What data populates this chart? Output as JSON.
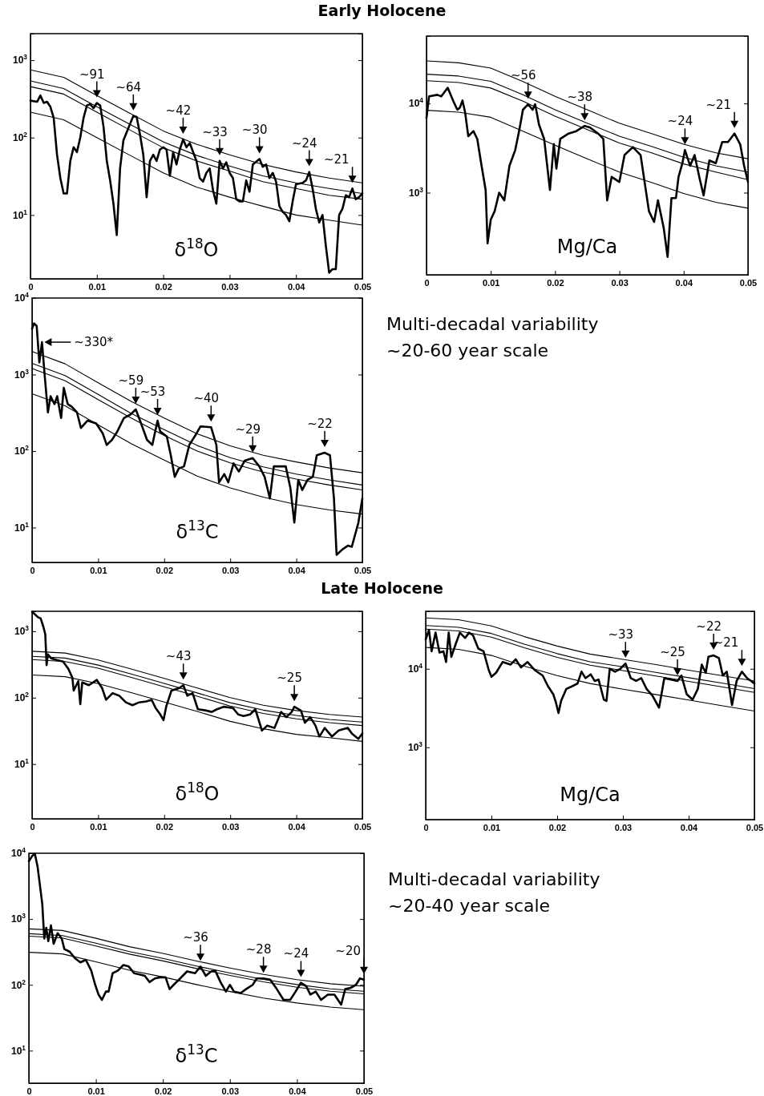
{
  "chart_data": [
    {
      "type": "line",
      "title": "Early Holocene",
      "log": true,
      "xlim": [
        0,
        0.05
      ],
      "ylim": [
        1.5,
        2200
      ],
      "xticks": [
        0,
        0.01,
        0.02,
        0.03,
        0.04,
        0.05
      ],
      "yticks": [
        {
          "value": 10,
          "label": "10$^{1}$"
        },
        {
          "value": 100,
          "label": "10$^{2}$"
        },
        {
          "value": 1000,
          "label": "10$^{3}$"
        }
      ],
      "x": [
        0,
        0.005,
        0.01,
        0.015,
        0.02,
        0.025,
        0.03,
        0.035,
        0.04,
        0.045,
        0.05
      ],
      "series": [
        {
          "color": "#000000",
          "x": [
            0,
            0.001,
            0.0015,
            0.002,
            0.0025,
            0.003,
            0.0035,
            0.004,
            0.0045,
            0.005,
            0.0055,
            0.006,
            0.0065,
            0.007,
            0.0075,
            0.008,
            0.0085,
            0.009,
            0.0095,
            0.01,
            0.0105,
            0.011,
            0.0115,
            0.012,
            0.0125,
            0.013,
            0.0135,
            0.014,
            0.015,
            0.0155,
            0.016,
            0.0165,
            0.017,
            0.0175,
            0.018,
            0.0185,
            0.019,
            0.0195,
            0.02,
            0.0205,
            0.021,
            0.0215,
            0.022,
            0.0225,
            0.023,
            0.0235,
            0.024,
            0.0245,
            0.025,
            0.0255,
            0.026,
            0.0265,
            0.027,
            0.0275,
            0.028,
            0.0285,
            0.029,
            0.0295,
            0.03,
            0.0305,
            0.031,
            0.0315,
            0.032,
            0.0325,
            0.033,
            0.0335,
            0.0345,
            0.035,
            0.0355,
            0.036,
            0.0365,
            0.037,
            0.0375,
            0.038,
            0.0385,
            0.039,
            0.0395,
            0.04,
            0.041,
            0.0415,
            0.042,
            0.0425,
            0.043,
            0.0435,
            0.044,
            0.0445,
            0.045,
            0.0455,
            0.046,
            0.0465,
            0.047,
            0.0475,
            0.048,
            0.0485,
            0.049,
            0.0495,
            0.05
          ],
          "values": [
            300,
            290,
            350,
            280,
            290,
            250,
            180,
            60,
            30,
            19,
            19,
            50,
            75,
            65,
            100,
            180,
            260,
            270,
            240,
            280,
            260,
            140,
            50,
            28,
            14,
            5.5,
            40,
            92,
            150,
            190,
            185,
            110,
            60,
            17,
            50,
            60,
            50,
            70,
            75,
            70,
            32,
            65,
            45,
            70,
            95,
            75,
            85,
            65,
            50,
            30,
            27,
            35,
            40,
            21,
            14,
            50,
            40,
            48,
            35,
            30,
            16,
            15,
            15,
            28,
            20,
            45,
            53,
            42,
            45,
            30,
            35,
            27,
            13,
            11,
            10,
            8.3,
            15,
            25,
            26,
            28,
            36,
            22,
            12,
            8,
            10,
            4,
            1.8,
            2,
            2,
            10,
            12,
            18,
            17,
            22,
            16,
            17,
            19
          ]
        },
        {
          "color": "#000000",
          "values": [
            750,
            600,
            350,
            205,
            122,
            82,
            60,
            45,
            36,
            30,
            26
          ]
        },
        {
          "color": "#000000",
          "values": [
            540,
            430,
            250,
            148,
            88,
            59,
            43,
            32,
            26,
            22,
            19
          ]
        },
        {
          "color": "#000000",
          "values": [
            455,
            365,
            213,
            125,
            74,
            50,
            37,
            27,
            22,
            18,
            16
          ]
        },
        {
          "color": "#000000",
          "values": [
            213,
            170,
            100,
            59,
            35,
            23,
            17,
            13,
            10,
            8.6,
            7.4
          ]
        }
      ],
      "annotations": [
        "δ$^{18}$O",
        {
          "text": "~91",
          "x": 0.01,
          "y": 280
        },
        {
          "text": "~64",
          "x": 0.0155,
          "y": 190
        },
        {
          "text": "~42",
          "x": 0.023,
          "y": 95
        },
        {
          "text": "~33",
          "x": 0.0285,
          "y": 50
        },
        {
          "text": "~30",
          "x": 0.0345,
          "y": 53
        },
        {
          "text": "~24",
          "x": 0.042,
          "y": 36
        },
        {
          "text": "~21",
          "x": 0.0485,
          "y": 22
        }
      ]
    },
    {
      "type": "line",
      "log": true,
      "xlim": [
        0,
        0.05
      ],
      "ylim": [
        120,
        57000
      ],
      "xticks": [
        0,
        0.01,
        0.02,
        0.03,
        0.04,
        0.05
      ],
      "yticks": [
        {
          "value": 1000,
          "label": "10$^{3}$"
        },
        {
          "value": 10000,
          "label": "10$^{4}$"
        }
      ],
      "x": [
        0,
        0.005,
        0.01,
        0.015,
        0.02,
        0.025,
        0.03,
        0.035,
        0.04,
        0.045,
        0.05
      ],
      "series": [
        {
          "color": "#000000",
          "x": [
            0,
            0.0004,
            0.0017,
            0.0023,
            0.0033,
            0.0042,
            0.0048,
            0.0052,
            0.0056,
            0.006,
            0.0065,
            0.0073,
            0.0079,
            0.0085,
            0.0092,
            0.0095,
            0.01,
            0.0106,
            0.0113,
            0.0121,
            0.0129,
            0.0138,
            0.0144,
            0.015,
            0.0158,
            0.0165,
            0.0169,
            0.0175,
            0.0183,
            0.0192,
            0.0198,
            0.0202,
            0.0208,
            0.0221,
            0.0233,
            0.0246,
            0.0254,
            0.0267,
            0.0275,
            0.0281,
            0.0288,
            0.03,
            0.0308,
            0.0321,
            0.0333,
            0.0346,
            0.0354,
            0.036,
            0.0369,
            0.0375,
            0.0381,
            0.0388,
            0.0392,
            0.0398,
            0.0402,
            0.041,
            0.0417,
            0.0425,
            0.0431,
            0.044,
            0.045,
            0.046,
            0.0469,
            0.0479,
            0.0488,
            0.0494,
            0.05
          ],
          "values": [
            6900,
            12000,
            12500,
            12000,
            15000,
            10500,
            8500,
            9000,
            10800,
            8000,
            4300,
            4900,
            4000,
            2140,
            1070,
            270,
            500,
            620,
            1000,
            820,
            2000,
            3000,
            4900,
            8500,
            9800,
            8500,
            9800,
            5800,
            4000,
            1070,
            3500,
            1860,
            4000,
            4600,
            4900,
            5600,
            5400,
            4600,
            4000,
            820,
            1500,
            1320,
            2640,
            3240,
            2640,
            620,
            470,
            820,
            400,
            190,
            870,
            870,
            1500,
            2140,
            3000,
            2000,
            2640,
            1420,
            930,
            2300,
            2140,
            3700,
            3700,
            4600,
            3470,
            2000,
            1320
          ]
        },
        {
          "color": "#000000",
          "values": [
            30000,
            28600,
            24900,
            17600,
            12000,
            8500,
            6000,
            4600,
            3500,
            2800,
            2400
          ]
        },
        {
          "color": "#000000",
          "values": [
            21300,
            20300,
            17700,
            12500,
            8500,
            6000,
            4300,
            3300,
            2500,
            2000,
            1700
          ]
        },
        {
          "color": "#000000",
          "values": [
            18000,
            17200,
            14900,
            10600,
            7200,
            5100,
            3600,
            2800,
            2100,
            1700,
            1400
          ]
        },
        {
          "color": "#000000",
          "values": [
            8400,
            8000,
            7000,
            4900,
            3400,
            2400,
            1700,
            1300,
            980,
            780,
            670
          ]
        }
      ],
      "annotations": [
        "Mg/Ca",
        {
          "text": "~56",
          "x": 0.0158,
          "y": 9800
        },
        {
          "text": "~38",
          "x": 0.0246,
          "y": 5600
        },
        {
          "text": "~24",
          "x": 0.0402,
          "y": 3000
        },
        {
          "text": "~21",
          "x": 0.0479,
          "y": 4600
        }
      ]
    },
    {
      "type": "line",
      "log": true,
      "xlim": [
        0,
        0.05
      ],
      "ylim": [
        3.5,
        10000
      ],
      "xticks": [
        0,
        0.01,
        0.02,
        0.03,
        0.04,
        0.05
      ],
      "yticks": [
        {
          "value": 10,
          "label": "10$^{1}$"
        },
        {
          "value": 100,
          "label": "10$^{2}$"
        },
        {
          "value": 1000,
          "label": "10$^{3}$"
        },
        {
          "value": 10000,
          "label": "10$^{4}$"
        }
      ],
      "x": [
        0,
        0.005,
        0.01,
        0.015,
        0.02,
        0.025,
        0.03,
        0.035,
        0.04,
        0.045,
        0.05
      ],
      "series": [
        {
          "color": "#000000",
          "x": [
            0,
            0.0003,
            0.0007,
            0.0011,
            0.0015,
            0.0019,
            0.0024,
            0.0028,
            0.0034,
            0.0038,
            0.0044,
            0.0048,
            0.0054,
            0.006,
            0.0068,
            0.0074,
            0.0084,
            0.0097,
            0.0107,
            0.0113,
            0.0121,
            0.0129,
            0.0139,
            0.0149,
            0.0157,
            0.0165,
            0.0174,
            0.0182,
            0.019,
            0.0194,
            0.0204,
            0.021,
            0.0216,
            0.0222,
            0.023,
            0.0238,
            0.0249,
            0.0255,
            0.0271,
            0.0279,
            0.0283,
            0.0291,
            0.0297,
            0.0305,
            0.0313,
            0.0322,
            0.0334,
            0.0344,
            0.0352,
            0.036,
            0.0366,
            0.0384,
            0.0391,
            0.0397,
            0.0403,
            0.0409,
            0.0417,
            0.0425,
            0.0431,
            0.0443,
            0.0451,
            0.0457,
            0.0461,
            0.047,
            0.0478,
            0.0484,
            0.0494,
            0.05
          ],
          "values": [
            3970,
            4660,
            4300,
            1440,
            2650,
            1000,
            320,
            520,
            410,
            520,
            270,
            670,
            410,
            380,
            320,
            200,
            250,
            230,
            170,
            120,
            140,
            180,
            270,
            300,
            350,
            230,
            140,
            120,
            250,
            180,
            155,
            88,
            46,
            59,
            63,
            120,
            170,
            210,
            205,
            120,
            39,
            50,
            39,
            69,
            54,
            75,
            81,
            63,
            46,
            24,
            63,
            63,
            33,
            11.6,
            42,
            31,
            42,
            46,
            88,
            95,
            88,
            24,
            4.4,
            5.2,
            5.8,
            5.6,
            11.6,
            24
          ]
        },
        {
          "color": "#000000",
          "values": [
            2000,
            1380,
            780,
            445,
            270,
            168,
            117,
            88,
            72,
            60,
            52
          ]
        },
        {
          "color": "#000000",
          "values": [
            1400,
            970,
            550,
            310,
            190,
            118,
            82,
            62,
            50,
            42,
            36
          ]
        },
        {
          "color": "#000000",
          "values": [
            1200,
            830,
            470,
            270,
            160,
            100,
            70,
            53,
            43,
            36,
            31
          ]
        },
        {
          "color": "#000000",
          "values": [
            560,
            390,
            220,
            125,
            76,
            47,
            33,
            25,
            20,
            17,
            15
          ]
        }
      ],
      "annotations": [
        "δ$^{13}$C",
        "Multi-decadal variability",
        "~20-60 year scale",
        {
          "text": "~330*",
          "x": 0.0015,
          "y": 2650
        },
        {
          "text": "~59",
          "x": 0.0157,
          "y": 350
        },
        {
          "text": "~53",
          "x": 0.019,
          "y": 250
        },
        {
          "text": "~40",
          "x": 0.0271,
          "y": 205
        },
        {
          "text": "~29",
          "x": 0.0334,
          "y": 81
        },
        {
          "text": "~22",
          "x": 0.0443,
          "y": 95
        }
      ]
    },
    {
      "type": "line",
      "title": "Late Holocene",
      "log": true,
      "xlim": [
        0,
        0.05
      ],
      "ylim": [
        1.5,
        2000
      ],
      "xticks": [
        0,
        0.01,
        0.02,
        0.03,
        0.04,
        0.05
      ],
      "yticks": [
        {
          "value": 10,
          "label": "10$^{1}$"
        },
        {
          "value": 100,
          "label": "10$^{2}$"
        },
        {
          "value": 1000,
          "label": "10$^{3}$"
        }
      ],
      "x": [
        0,
        0.005,
        0.01,
        0.015,
        0.02,
        0.025,
        0.03,
        0.035,
        0.04,
        0.045,
        0.05
      ],
      "series": [
        {
          "color": "#000000",
          "x": [
            0,
            0.0009,
            0.0013,
            0.0017,
            0.002,
            0.0022,
            0.0024,
            0.0029,
            0.0037,
            0.0047,
            0.0055,
            0.0061,
            0.0063,
            0.007,
            0.0073,
            0.0076,
            0.0086,
            0.0098,
            0.0106,
            0.0112,
            0.0122,
            0.0132,
            0.0142,
            0.0152,
            0.0162,
            0.0173,
            0.0181,
            0.0187,
            0.0193,
            0.0199,
            0.0203,
            0.0211,
            0.0223,
            0.0229,
            0.0235,
            0.0243,
            0.0251,
            0.0264,
            0.0272,
            0.028,
            0.029,
            0.0304,
            0.0312,
            0.032,
            0.033,
            0.0338,
            0.0348,
            0.0356,
            0.0367,
            0.0377,
            0.0385,
            0.0393,
            0.0397,
            0.0407,
            0.0413,
            0.0421,
            0.0429,
            0.0435,
            0.0443,
            0.0454,
            0.0464,
            0.0478,
            0.0484,
            0.0494,
            0.05
          ],
          "values": [
            1970,
            1630,
            1560,
            1180,
            900,
            310,
            450,
            390,
            370,
            350,
            270,
            200,
            128,
            177,
            80,
            170,
            154,
            185,
            140,
            93,
            117,
            107,
            85,
            77,
            85,
            88,
            93,
            70,
            58,
            46,
            73,
            128,
            140,
            154,
            107,
            117,
            67,
            64,
            61,
            67,
            73,
            70,
            56,
            53,
            56,
            67,
            32,
            38,
            35,
            61,
            51,
            61,
            73,
            64,
            42,
            51,
            38,
            26,
            35,
            26,
            32,
            35,
            29,
            24,
            29
          ]
        },
        {
          "color": "#000000",
          "values": [
            500,
            470,
            370,
            270,
            195,
            140,
            100,
            77,
            64,
            56,
            51
          ]
        },
        {
          "color": "#000000",
          "values": [
            420,
            395,
            310,
            227,
            164,
            118,
            84,
            65,
            54,
            47,
            43
          ]
        },
        {
          "color": "#000000",
          "values": [
            375,
            350,
            278,
            202,
            146,
            105,
            75,
            58,
            48,
            42,
            38
          ]
        },
        {
          "color": "#000000",
          "values": [
            220,
            207,
            163,
            119,
            86,
            62,
            44,
            34,
            28,
            25,
            22
          ]
        }
      ],
      "annotations": [
        "δ$^{18}$O",
        {
          "text": "~43",
          "x": 0.0229,
          "y": 154
        },
        {
          "text": "~25",
          "x": 0.0397,
          "y": 73
        }
      ]
    },
    {
      "type": "line",
      "log": true,
      "xlim": [
        0,
        0.05
      ],
      "ylim": [
        120,
        54000
      ],
      "xticks": [
        0,
        0.01,
        0.02,
        0.03,
        0.04,
        0.05
      ],
      "yticks": [
        {
          "value": 1000,
          "label": "10$^{3}$"
        },
        {
          "value": 10000,
          "label": "10$^{4}$"
        }
      ],
      "x": [
        0,
        0.005,
        0.01,
        0.015,
        0.02,
        0.025,
        0.03,
        0.035,
        0.04,
        0.045,
        0.05
      ],
      "series": [
        {
          "color": "#000000",
          "x": [
            0,
            0.0005,
            0.0009,
            0.0015,
            0.0021,
            0.0027,
            0.0031,
            0.0035,
            0.0039,
            0.0046,
            0.0052,
            0.006,
            0.0066,
            0.0072,
            0.008,
            0.0088,
            0.0096,
            0.01,
            0.0107,
            0.0117,
            0.0129,
            0.0137,
            0.0145,
            0.0155,
            0.0166,
            0.0178,
            0.0186,
            0.0194,
            0.0198,
            0.0202,
            0.0206,
            0.0214,
            0.0223,
            0.0231,
            0.0237,
            0.0243,
            0.0251,
            0.0257,
            0.0263,
            0.0271,
            0.0275,
            0.028,
            0.0288,
            0.0296,
            0.0304,
            0.0312,
            0.032,
            0.0328,
            0.0336,
            0.0345,
            0.0355,
            0.0363,
            0.0373,
            0.0383,
            0.0389,
            0.0397,
            0.0406,
            0.0414,
            0.042,
            0.0426,
            0.043,
            0.0438,
            0.0446,
            0.0452,
            0.0458,
            0.0466,
            0.0473,
            0.0481,
            0.0489,
            0.0495,
            0.05
          ],
          "values": [
            23700,
            31300,
            16700,
            28900,
            16100,
            16700,
            12200,
            28900,
            14200,
            21100,
            28900,
            24700,
            28900,
            26700,
            18100,
            16700,
            9600,
            7900,
            8900,
            12200,
            11300,
            13200,
            10400,
            12200,
            9600,
            8200,
            6000,
            4750,
            3750,
            2730,
            3900,
            5550,
            6000,
            6500,
            9200,
            7600,
            8500,
            7000,
            7300,
            4050,
            3900,
            10000,
            9200,
            10000,
            11700,
            7600,
            7000,
            7600,
            5550,
            4550,
            3200,
            7600,
            7300,
            7000,
            8200,
            4750,
            4050,
            5550,
            11300,
            8900,
            14200,
            14800,
            13700,
            8200,
            9200,
            3450,
            7000,
            9200,
            7600,
            7000,
            6500
          ]
        },
        {
          "color": "#000000",
          "values": [
            44500,
            42200,
            35200,
            25700,
            19500,
            15400,
            13200,
            11300,
            9600,
            8200,
            7000
          ]
        },
        {
          "color": "#000000",
          "values": [
            35600,
            33800,
            28200,
            20600,
            15600,
            12300,
            10600,
            9000,
            7700,
            6600,
            5600
          ]
        },
        {
          "color": "#000000",
          "values": [
            32000,
            30400,
            25300,
            18500,
            14000,
            11100,
            9500,
            8100,
            6900,
            5900,
            5000
          ]
        },
        {
          "color": "#000000",
          "values": [
            18700,
            17700,
            14800,
            10800,
            8200,
            6500,
            5500,
            4700,
            4000,
            3400,
            2900
          ]
        }
      ],
      "annotations": [
        "Mg/Ca",
        {
          "text": "~33",
          "x": 0.0304,
          "y": 11700
        },
        {
          "text": "~25",
          "x": 0.0383,
          "y": 7000
        },
        {
          "text": "~22",
          "x": 0.0438,
          "y": 14800
        },
        {
          "text": "~21",
          "x": 0.0481,
          "y": 9200
        }
      ]
    },
    {
      "type": "line",
      "log": true,
      "xlim": [
        0,
        0.05
      ],
      "ylim": [
        3.2,
        10000
      ],
      "xticks": [
        0,
        0.01,
        0.02,
        0.03,
        0.04,
        0.05
      ],
      "yticks": [
        {
          "value": 10,
          "label": "10$^{1}$"
        },
        {
          "value": 100,
          "label": "10$^{2}$"
        },
        {
          "value": 1000,
          "label": "10$^{3}$"
        },
        {
          "value": 10000,
          "label": "10$^{4}$"
        }
      ],
      "x": [
        0,
        0.005,
        0.01,
        0.015,
        0.02,
        0.025,
        0.03,
        0.035,
        0.04,
        0.045,
        0.05
      ],
      "series": [
        {
          "color": "#000000",
          "x": [
            0,
            0.0005,
            0.0009,
            0.0013,
            0.0017,
            0.002,
            0.0023,
            0.0026,
            0.0029,
            0.0033,
            0.0037,
            0.0043,
            0.0049,
            0.0053,
            0.0061,
            0.0069,
            0.0077,
            0.0085,
            0.0093,
            0.0099,
            0.0104,
            0.0109,
            0.0115,
            0.0119,
            0.0125,
            0.0133,
            0.0141,
            0.0149,
            0.0157,
            0.0165,
            0.0173,
            0.018,
            0.0188,
            0.0196,
            0.0204,
            0.021,
            0.0216,
            0.0224,
            0.0236,
            0.0248,
            0.0256,
            0.0264,
            0.0272,
            0.0278,
            0.0286,
            0.0294,
            0.03,
            0.0306,
            0.0316,
            0.0324,
            0.0334,
            0.034,
            0.035,
            0.036,
            0.037,
            0.038,
            0.039,
            0.0398,
            0.0406,
            0.0414,
            0.042,
            0.0428,
            0.0436,
            0.0446,
            0.0456,
            0.0466,
            0.0472,
            0.048,
            0.0488,
            0.0494,
            0.05
          ],
          "values": [
            7570,
            9100,
            9800,
            6270,
            2980,
            1700,
            506,
            735,
            460,
            800,
            420,
            610,
            506,
            350,
            318,
            252,
            219,
            240,
            165,
            100,
            71,
            59,
            79,
            79,
            150,
            165,
            200,
            190,
            150,
            144,
            137,
            110,
            125,
            130,
            130,
            86,
            100,
            120,
            160,
            150,
            190,
            137,
            160,
            165,
            110,
            79,
            100,
            79,
            75,
            86,
            100,
            125,
            125,
            120,
            86,
            59,
            59,
            79,
            108,
            95,
            71,
            79,
            59,
            71,
            71,
            50,
            86,
            90,
            100,
            125,
            120
          ]
        },
        {
          "color": "#000000",
          "values": [
            710,
            670,
            510,
            380,
            300,
            230,
            180,
            144,
            120,
            104,
            95
          ]
        },
        {
          "color": "#000000",
          "values": [
            600,
            560,
            430,
            320,
            252,
            193,
            151,
            121,
            101,
            87,
            80
          ]
        },
        {
          "color": "#000000",
          "values": [
            550,
            515,
            390,
            293,
            231,
            177,
            139,
            111,
            92,
            80,
            73
          ]
        },
        {
          "color": "#000000",
          "values": [
            312,
            295,
            224,
            167,
            132,
            101,
            79,
            63,
            53,
            46,
            42
          ]
        }
      ],
      "annotations": [
        "δ$^{13}$C",
        "Multi-decadal variability",
        "~20-40 year scale",
        {
          "text": "~36",
          "x": 0.0256,
          "y": 190
        },
        {
          "text": "~28",
          "x": 0.035,
          "y": 125
        },
        {
          "text": "~24",
          "x": 0.0406,
          "y": 108
        },
        {
          "text": "~20",
          "x": 0.05,
          "y": 120
        }
      ]
    }
  ]
}
